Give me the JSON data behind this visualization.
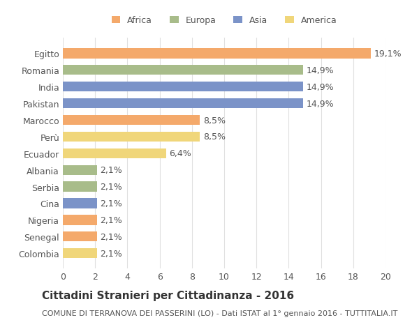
{
  "countries": [
    "Egitto",
    "Romania",
    "India",
    "Pakistan",
    "Marocco",
    "Perù",
    "Ecuador",
    "Albania",
    "Serbia",
    "Cina",
    "Nigeria",
    "Senegal",
    "Colombia"
  ],
  "values": [
    19.1,
    14.9,
    14.9,
    14.9,
    8.5,
    8.5,
    6.4,
    2.1,
    2.1,
    2.1,
    2.1,
    2.1,
    2.1
  ],
  "labels": [
    "19,1%",
    "14,9%",
    "14,9%",
    "14,9%",
    "8,5%",
    "8,5%",
    "6,4%",
    "2,1%",
    "2,1%",
    "2,1%",
    "2,1%",
    "2,1%",
    "2,1%"
  ],
  "continent": [
    "Africa",
    "Europa",
    "Asia",
    "Asia",
    "Africa",
    "America",
    "America",
    "Europa",
    "Europa",
    "Asia",
    "Africa",
    "Africa",
    "America"
  ],
  "colors": {
    "Africa": "#F4A96B",
    "Europa": "#A8BC8A",
    "Asia": "#7B93C8",
    "America": "#F0D67A"
  },
  "legend_order": [
    "Africa",
    "Europa",
    "Asia",
    "America"
  ],
  "legend_colors": [
    "#F4A96B",
    "#A8BC8A",
    "#7B93C8",
    "#F0D67A"
  ],
  "xlim": [
    0,
    20
  ],
  "xticks": [
    0,
    2,
    4,
    6,
    8,
    10,
    12,
    14,
    16,
    18,
    20
  ],
  "title": "Cittadini Stranieri per Cittadinanza - 2016",
  "subtitle": "COMUNE DI TERRANOVA DEI PASSERINI (LO) - Dati ISTAT al 1° gennaio 2016 - TUTTITALIA.IT",
  "background_color": "#ffffff",
  "grid_color": "#e0e0e0",
  "bar_height": 0.6,
  "label_fontsize": 9,
  "tick_fontsize": 9,
  "title_fontsize": 11,
  "subtitle_fontsize": 8
}
